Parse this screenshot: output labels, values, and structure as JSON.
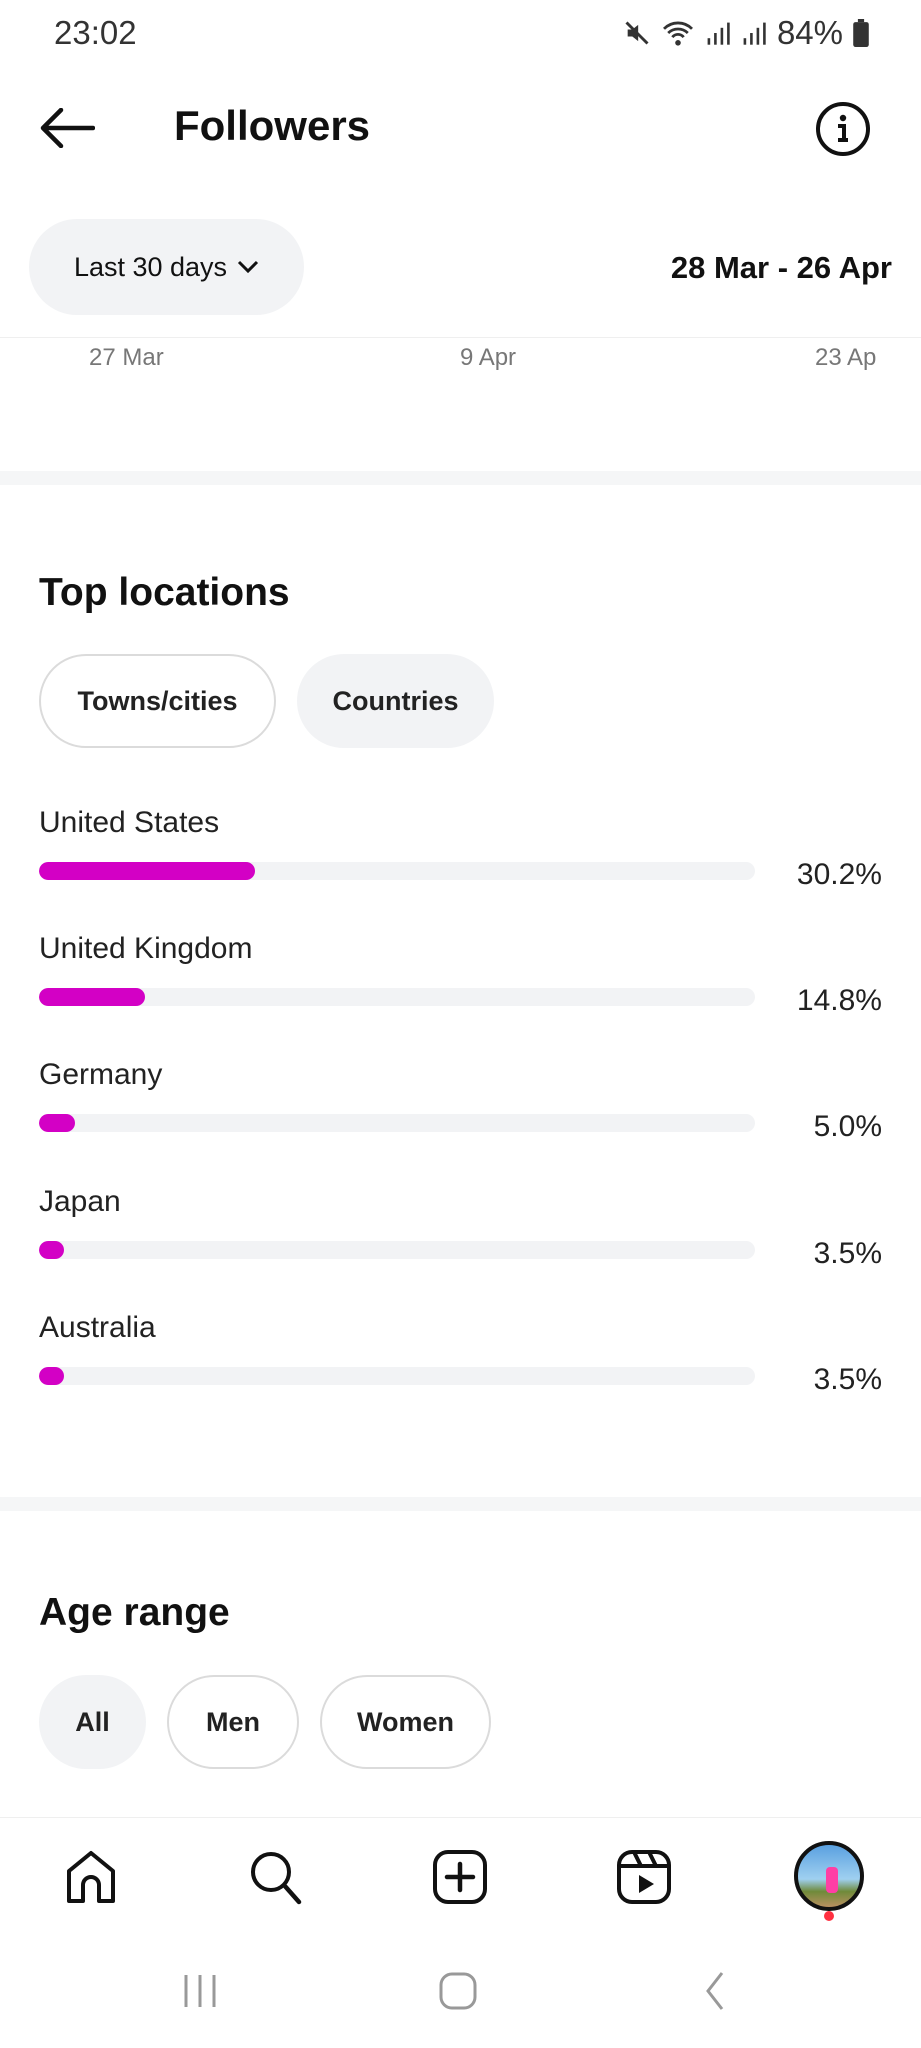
{
  "status_bar": {
    "time": "23:02",
    "battery": "84%"
  },
  "header": {
    "title": "Followers"
  },
  "filter": {
    "period_label": "Last 30 days",
    "date_range": "28 Mar - 26 Apr"
  },
  "chart_axis": {
    "ticks": [
      "27 Mar",
      "9 Apr",
      "23 Ap"
    ]
  },
  "top_locations": {
    "title": "Top locations",
    "tabs": [
      {
        "label": "Towns/cities",
        "selected": false
      },
      {
        "label": "Countries",
        "selected": true
      }
    ],
    "accent": "#d300c5",
    "items": [
      {
        "name": "United States",
        "percent_label": "30.2%",
        "value": 30.2
      },
      {
        "name": "United Kingdom",
        "percent_label": "14.8%",
        "value": 14.8
      },
      {
        "name": "Germany",
        "percent_label": "5.0%",
        "value": 5.0
      },
      {
        "name": "Japan",
        "percent_label": "3.5%",
        "value": 3.5
      },
      {
        "name": "Australia",
        "percent_label": "3.5%",
        "value": 3.5
      }
    ]
  },
  "age_range": {
    "title": "Age range",
    "tabs": [
      {
        "label": "All",
        "selected": true
      },
      {
        "label": "Men",
        "selected": false
      },
      {
        "label": "Women",
        "selected": false
      }
    ]
  },
  "bottom_nav": {
    "items": [
      "home-icon",
      "search-icon",
      "create-icon",
      "reels-icon",
      "profile-avatar"
    ],
    "notification_color": "#ff3040"
  }
}
